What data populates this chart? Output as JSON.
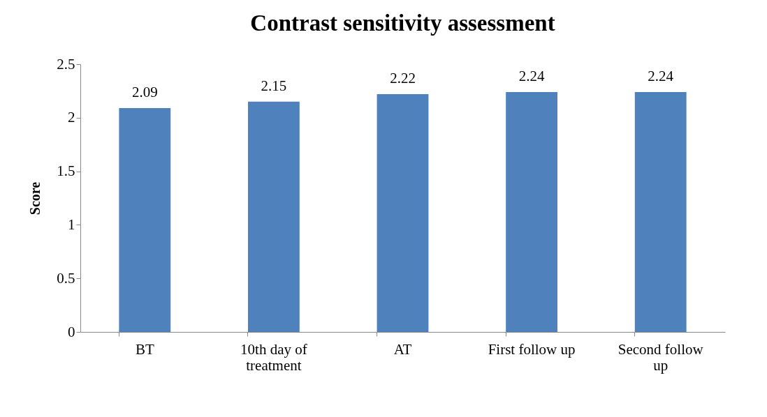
{
  "chart_data": {
    "type": "bar",
    "title": "Contrast sensitivity assessment",
    "ylabel": "Score",
    "categories": [
      "BT",
      "10th day of treatment",
      "AT",
      "First follow up",
      "Second follow up"
    ],
    "values": [
      2.09,
      2.15,
      2.22,
      2.24,
      2.24
    ],
    "color": "#4f81bd",
    "ylim": [
      0,
      2.5
    ],
    "yticks": [
      0,
      0.5,
      1,
      1.5,
      2,
      2.5
    ],
    "data_labels": true,
    "grid": false
  }
}
